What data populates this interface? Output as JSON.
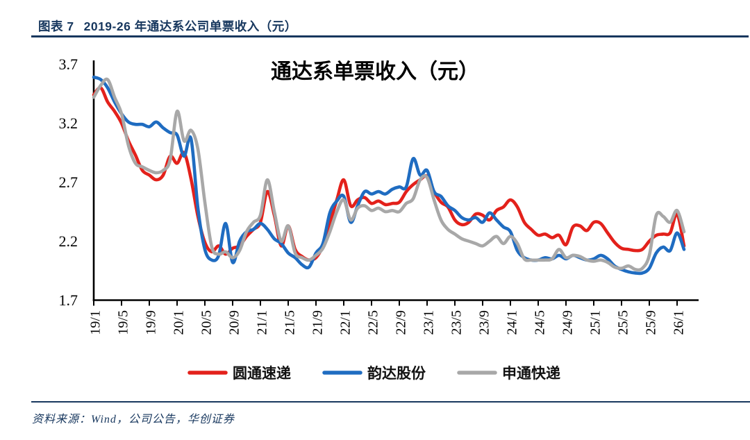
{
  "header": {
    "figure_label": "图表 7",
    "figure_title": "2019-26 年通达系公司单票收入（元）"
  },
  "footer": {
    "source": "资料来源：Wind，公司公告，华创证券"
  },
  "colors": {
    "accent_navy": "#17375e",
    "axis": "#000000"
  },
  "chart_data": {
    "type": "line",
    "title": "通达系单票收入（元）",
    "ylabel": "",
    "xlabel": "",
    "ylim": [
      1.7,
      3.7
    ],
    "grid": false,
    "legend_position": "bottom-center",
    "ytick_values": [
      3.7,
      3.2,
      2.7,
      2.2,
      1.7
    ],
    "xtick_labels": [
      "19/1",
      "19/5",
      "19/9",
      "20/1",
      "20/5",
      "20/9",
      "21/1",
      "21/5",
      "21/9",
      "22/1",
      "22/5",
      "22/9",
      "23/1",
      "23/5",
      "23/9",
      "24/1",
      "24/5",
      "24/9",
      "25/1",
      "25/5",
      "25/9",
      "26/1"
    ],
    "x_categories": [
      "19/1",
      "19/2",
      "19/3",
      "19/4",
      "19/5",
      "19/6",
      "19/7",
      "19/8",
      "19/9",
      "19/10",
      "19/11",
      "19/12",
      "20/1",
      "20/2",
      "20/3",
      "20/4",
      "20/5",
      "20/6",
      "20/7",
      "20/8",
      "20/9",
      "20/10",
      "20/11",
      "20/12",
      "21/1",
      "21/2",
      "21/3",
      "21/4",
      "21/5",
      "21/6",
      "21/7",
      "21/8",
      "21/9",
      "21/10",
      "21/11",
      "21/12",
      "22/1",
      "22/2",
      "22/3",
      "22/4",
      "22/5",
      "22/6",
      "22/7",
      "22/8",
      "22/9",
      "22/10",
      "22/11",
      "22/12",
      "23/1",
      "23/2",
      "23/3",
      "23/4",
      "23/5",
      "23/6",
      "23/7",
      "23/8",
      "23/9",
      "23/10",
      "23/11",
      "23/12",
      "24/1",
      "24/2",
      "24/3",
      "24/4",
      "24/5",
      "24/6",
      "24/7",
      "24/8",
      "24/9",
      "24/10",
      "24/11",
      "24/12",
      "25/1",
      "25/2",
      "25/3",
      "25/4",
      "25/5",
      "25/6",
      "25/7",
      "25/8",
      "25/9",
      "25/10",
      "25/11",
      "25/12",
      "26/1",
      "26/2"
    ],
    "series": [
      {
        "name": "圆通速递",
        "color": "#e3211b",
        "values": [
          3.44,
          3.5,
          3.38,
          3.3,
          3.2,
          3.05,
          2.93,
          2.8,
          2.76,
          2.72,
          2.76,
          2.92,
          2.86,
          2.95,
          2.73,
          2.41,
          2.19,
          2.11,
          2.16,
          2.09,
          2.14,
          2.16,
          2.24,
          2.3,
          2.36,
          2.62,
          2.42,
          2.16,
          2.33,
          2.13,
          2.07,
          2.04,
          2.06,
          2.16,
          2.35,
          2.55,
          2.72,
          2.5,
          2.55,
          2.57,
          2.52,
          2.54,
          2.51,
          2.52,
          2.53,
          2.62,
          2.68,
          2.72,
          2.75,
          2.62,
          2.53,
          2.49,
          2.38,
          2.34,
          2.36,
          2.43,
          2.42,
          2.38,
          2.46,
          2.49,
          2.55,
          2.49,
          2.36,
          2.3,
          2.25,
          2.26,
          2.23,
          2.25,
          2.17,
          2.32,
          2.33,
          2.29,
          2.36,
          2.35,
          2.27,
          2.19,
          2.14,
          2.13,
          2.12,
          2.13,
          2.2,
          2.25,
          2.26,
          2.27,
          2.43,
          2.16
        ]
      },
      {
        "name": "韵达股份",
        "color": "#1f6cc1",
        "values": [
          3.59,
          3.57,
          3.5,
          3.38,
          3.28,
          3.21,
          3.19,
          3.19,
          3.17,
          3.21,
          3.16,
          3.12,
          3.1,
          2.92,
          3.07,
          2.48,
          2.13,
          2.04,
          2.08,
          2.35,
          2.02,
          2.2,
          2.28,
          2.3,
          2.35,
          2.3,
          2.22,
          2.18,
          2.1,
          2.06,
          2.0,
          1.98,
          2.1,
          2.18,
          2.44,
          2.54,
          2.58,
          2.36,
          2.5,
          2.62,
          2.6,
          2.62,
          2.6,
          2.64,
          2.66,
          2.66,
          2.9,
          2.76,
          2.8,
          2.62,
          2.58,
          2.5,
          2.46,
          2.4,
          2.38,
          2.4,
          2.36,
          2.44,
          2.38,
          2.32,
          2.28,
          2.12,
          2.06,
          2.04,
          2.04,
          2.06,
          2.05,
          2.08,
          2.05,
          2.08,
          2.06,
          2.04,
          2.05,
          2.08,
          2.05,
          1.99,
          1.96,
          1.94,
          1.93,
          1.93,
          1.97,
          2.1,
          2.15,
          2.12,
          2.27,
          2.13
        ]
      },
      {
        "name": "申通快递",
        "color": "#a8a8a8",
        "values": [
          3.42,
          3.52,
          3.57,
          3.42,
          3.28,
          3.01,
          2.86,
          2.83,
          2.8,
          2.78,
          2.8,
          2.89,
          3.3,
          3.05,
          3.14,
          2.98,
          2.53,
          2.15,
          2.09,
          2.11,
          2.06,
          2.12,
          2.28,
          2.36,
          2.42,
          2.72,
          2.45,
          2.2,
          2.33,
          2.1,
          2.06,
          2.04,
          2.08,
          2.14,
          2.28,
          2.45,
          2.55,
          2.38,
          2.48,
          2.5,
          2.46,
          2.48,
          2.45,
          2.46,
          2.45,
          2.52,
          2.56,
          2.72,
          2.74,
          2.55,
          2.38,
          2.3,
          2.26,
          2.22,
          2.2,
          2.18,
          2.16,
          2.2,
          2.24,
          2.18,
          2.24,
          2.18,
          2.05,
          2.04,
          2.04,
          2.04,
          2.05,
          2.13,
          2.06,
          2.08,
          2.07,
          2.04,
          2.03,
          2.04,
          2.02,
          1.98,
          1.97,
          1.99,
          1.96,
          1.97,
          2.08,
          2.42,
          2.41,
          2.36,
          2.46,
          2.28
        ]
      }
    ]
  }
}
